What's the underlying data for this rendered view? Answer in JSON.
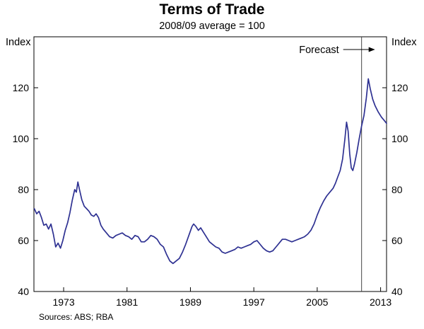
{
  "header": {
    "title": "Terms of Trade",
    "subtitle": "2008/09 average = 100"
  },
  "footer": {
    "sources": "Sources: ABS; RBA"
  },
  "chart_data": {
    "type": "line",
    "title": "Terms of Trade",
    "subtitle": "2008/09 average = 100",
    "y_axis_label_left": "Index",
    "y_axis_label_right": "Index",
    "xlim": [
      1969.25,
      2013.75
    ],
    "ylim": [
      40,
      140
    ],
    "x_ticks": [
      1973,
      1981,
      1989,
      1997,
      2005,
      2013
    ],
    "y_ticks": [
      40,
      60,
      80,
      100,
      120
    ],
    "grid": false,
    "line_color": "#2e3192",
    "axis_color": "#000000",
    "forecast": {
      "label": "Forecast",
      "line_x": 2010.6
    },
    "series": [
      {
        "name": "Terms of trade",
        "points": [
          [
            1969.3,
            72.5
          ],
          [
            1969.6,
            70.5
          ],
          [
            1969.9,
            71.5
          ],
          [
            1970.2,
            69
          ],
          [
            1970.5,
            66
          ],
          [
            1970.8,
            66.5
          ],
          [
            1971.1,
            64.5
          ],
          [
            1971.4,
            66.5
          ],
          [
            1971.7,
            62.5
          ],
          [
            1972.0,
            57.5
          ],
          [
            1972.3,
            59
          ],
          [
            1972.6,
            57
          ],
          [
            1972.9,
            60
          ],
          [
            1973.2,
            64
          ],
          [
            1973.5,
            67
          ],
          [
            1973.8,
            71
          ],
          [
            1974.1,
            76
          ],
          [
            1974.4,
            80
          ],
          [
            1974.6,
            79
          ],
          [
            1974.8,
            83
          ],
          [
            1975.0,
            80
          ],
          [
            1975.3,
            76
          ],
          [
            1975.6,
            73.5
          ],
          [
            1975.9,
            72.5
          ],
          [
            1976.2,
            71.5
          ],
          [
            1976.5,
            70
          ],
          [
            1976.8,
            69.5
          ],
          [
            1977.1,
            70.5
          ],
          [
            1977.4,
            69
          ],
          [
            1977.7,
            66
          ],
          [
            1978.0,
            64.5
          ],
          [
            1978.4,
            63
          ],
          [
            1978.8,
            61.5
          ],
          [
            1979.2,
            61
          ],
          [
            1979.6,
            62
          ],
          [
            1980.0,
            62.5
          ],
          [
            1980.4,
            63
          ],
          [
            1980.8,
            62
          ],
          [
            1981.2,
            61.5
          ],
          [
            1981.6,
            60.5
          ],
          [
            1982.0,
            62
          ],
          [
            1982.4,
            61.5
          ],
          [
            1982.8,
            59.5
          ],
          [
            1983.2,
            59.5
          ],
          [
            1983.6,
            60.5
          ],
          [
            1984.0,
            62
          ],
          [
            1984.4,
            61.5
          ],
          [
            1984.8,
            60.5
          ],
          [
            1985.2,
            58.5
          ],
          [
            1985.6,
            57.5
          ],
          [
            1986.0,
            54.5
          ],
          [
            1986.4,
            52
          ],
          [
            1986.8,
            51
          ],
          [
            1987.2,
            52
          ],
          [
            1987.6,
            53
          ],
          [
            1988.0,
            55.5
          ],
          [
            1988.4,
            58.5
          ],
          [
            1988.8,
            62
          ],
          [
            1989.2,
            65.5
          ],
          [
            1989.4,
            66.5
          ],
          [
            1989.7,
            65.5
          ],
          [
            1990.0,
            64
          ],
          [
            1990.3,
            65
          ],
          [
            1990.6,
            63.5
          ],
          [
            1991.0,
            61.5
          ],
          [
            1991.4,
            59.5
          ],
          [
            1991.8,
            58.5
          ],
          [
            1992.2,
            57.5
          ],
          [
            1992.6,
            57
          ],
          [
            1993.0,
            55.5
          ],
          [
            1993.4,
            55
          ],
          [
            1993.8,
            55.5
          ],
          [
            1994.2,
            56
          ],
          [
            1994.6,
            56.5
          ],
          [
            1995.0,
            57.5
          ],
          [
            1995.4,
            57
          ],
          [
            1995.8,
            57.5
          ],
          [
            1996.2,
            58
          ],
          [
            1996.6,
            58.5
          ],
          [
            1997.0,
            59.5
          ],
          [
            1997.4,
            60
          ],
          [
            1997.8,
            58.5
          ],
          [
            1998.2,
            57
          ],
          [
            1998.6,
            56
          ],
          [
            1999.0,
            55.5
          ],
          [
            1999.4,
            56
          ],
          [
            1999.8,
            57.5
          ],
          [
            2000.2,
            59
          ],
          [
            2000.6,
            60.5
          ],
          [
            2001.0,
            60.5
          ],
          [
            2001.4,
            60
          ],
          [
            2001.8,
            59.5
          ],
          [
            2002.2,
            60
          ],
          [
            2002.6,
            60.5
          ],
          [
            2003.0,
            61
          ],
          [
            2003.4,
            61.5
          ],
          [
            2003.8,
            62.5
          ],
          [
            2004.2,
            64
          ],
          [
            2004.6,
            66.5
          ],
          [
            2005.0,
            70
          ],
          [
            2005.4,
            73
          ],
          [
            2005.8,
            75.5
          ],
          [
            2006.2,
            77.5
          ],
          [
            2006.6,
            79
          ],
          [
            2007.0,
            80.5
          ],
          [
            2007.3,
            82.5
          ],
          [
            2007.6,
            85
          ],
          [
            2007.9,
            87.5
          ],
          [
            2008.2,
            92
          ],
          [
            2008.5,
            100
          ],
          [
            2008.7,
            106.5
          ],
          [
            2008.9,
            103
          ],
          [
            2009.1,
            94
          ],
          [
            2009.3,
            88.5
          ],
          [
            2009.5,
            87.5
          ],
          [
            2009.7,
            90
          ],
          [
            2010.0,
            94.5
          ],
          [
            2010.3,
            100
          ],
          [
            2010.6,
            105
          ],
          [
            2010.9,
            109
          ],
          [
            2011.2,
            116
          ],
          [
            2011.45,
            123.5
          ],
          [
            2011.7,
            119.5
          ],
          [
            2012.0,
            115.5
          ],
          [
            2012.3,
            113
          ],
          [
            2012.7,
            110.5
          ],
          [
            2013.1,
            108.5
          ],
          [
            2013.5,
            107
          ],
          [
            2013.75,
            106
          ]
        ]
      }
    ]
  }
}
